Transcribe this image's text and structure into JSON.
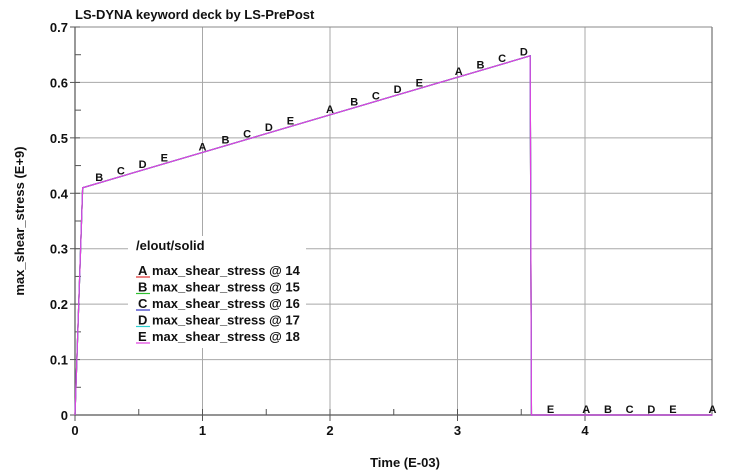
{
  "chart_data": {
    "type": "line",
    "title": "LS-DYNA keyword deck by LS-PrePost",
    "xlabel": "Time (E-03)",
    "ylabel": "max_shear_stress (E+9)",
    "xlim": [
      0,
      5.0
    ],
    "ylim": [
      0,
      0.7
    ],
    "xticks": [
      "0",
      "1",
      "2",
      "3",
      "4"
    ],
    "yticks": [
      "0",
      "0.1",
      "0.2",
      "0.3",
      "0.4",
      "0.5",
      "0.6",
      "0.7"
    ],
    "grid": true,
    "legend": {
      "title": "/elout/solid",
      "position": "center-left",
      "entries": [
        {
          "marker": "A",
          "label": "max_shear_stress @ 14",
          "color": "#e03030"
        },
        {
          "marker": "B",
          "label": "max_shear_stress @ 15",
          "color": "#30c030"
        },
        {
          "marker": "C",
          "label": "max_shear_stress @ 16",
          "color": "#3030c0"
        },
        {
          "marker": "D",
          "label": "max_shear_stress @ 17",
          "color": "#30d0d0"
        },
        {
          "marker": "E",
          "label": "max_shear_stress @ 18",
          "color": "#e040e0"
        }
      ]
    },
    "series": [
      {
        "name": "max_shear_stress @ 14",
        "x": [
          0,
          0.06,
          3.57,
          3.58,
          5.0
        ],
        "y": [
          0,
          0.41,
          0.648,
          0,
          0
        ]
      },
      {
        "name": "max_shear_stress @ 15",
        "x": [
          0,
          0.06,
          3.57,
          3.58,
          5.0
        ],
        "y": [
          0,
          0.41,
          0.648,
          0,
          0
        ]
      },
      {
        "name": "max_shear_stress @ 16",
        "x": [
          0,
          0.06,
          3.57,
          3.58,
          5.0
        ],
        "y": [
          0,
          0.41,
          0.648,
          0,
          0
        ]
      },
      {
        "name": "max_shear_stress @ 17",
        "x": [
          0,
          0.06,
          3.57,
          3.58,
          5.0
        ],
        "y": [
          0,
          0.41,
          0.648,
          0,
          0
        ]
      },
      {
        "name": "max_shear_stress @ 18",
        "x": [
          0,
          0.06,
          3.57,
          3.58,
          5.0
        ],
        "y": [
          0,
          0.41,
          0.648,
          0,
          0
        ]
      }
    ],
    "curve_color": "#e040e0",
    "markers": [
      {
        "m": "B",
        "x": 0.19
      },
      {
        "m": "C",
        "x": 0.36
      },
      {
        "m": "D",
        "x": 0.53
      },
      {
        "m": "E",
        "x": 0.7
      },
      {
        "m": "A",
        "x": 1.0
      },
      {
        "m": "B",
        "x": 1.18
      },
      {
        "m": "C",
        "x": 1.35
      },
      {
        "m": "D",
        "x": 1.52
      },
      {
        "m": "E",
        "x": 1.69
      },
      {
        "m": "A",
        "x": 2.0
      },
      {
        "m": "B",
        "x": 2.19
      },
      {
        "m": "C",
        "x": 2.36
      },
      {
        "m": "D",
        "x": 2.53
      },
      {
        "m": "E",
        "x": 2.7
      },
      {
        "m": "A",
        "x": 3.01
      },
      {
        "m": "B",
        "x": 3.18
      },
      {
        "m": "C",
        "x": 3.35
      },
      {
        "m": "D",
        "x": 3.52
      },
      {
        "m": "E",
        "x": 3.73
      },
      {
        "m": "A",
        "x": 4.01
      },
      {
        "m": "B",
        "x": 4.18
      },
      {
        "m": "C",
        "x": 4.35
      },
      {
        "m": "D",
        "x": 4.52
      },
      {
        "m": "E",
        "x": 4.69
      },
      {
        "m": "A",
        "x": 5.0
      }
    ]
  }
}
